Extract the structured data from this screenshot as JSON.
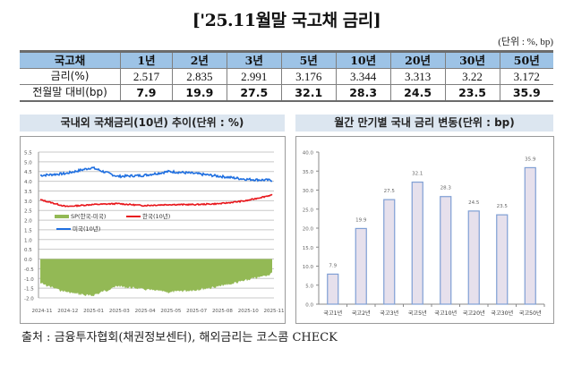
{
  "title": "['25.11월말 국고채 금리]",
  "unit": "(단위 : %, bp)",
  "table": {
    "headers": [
      "국고채",
      "1년",
      "2년",
      "3년",
      "5년",
      "10년",
      "20년",
      "30년",
      "50년"
    ],
    "rows": [
      {
        "label": "금리(%)",
        "values": [
          "2.517",
          "2.835",
          "2.991",
          "3.176",
          "3.344",
          "3.313",
          "3.22",
          "3.172"
        ]
      },
      {
        "label": "전월말 대비(bp)",
        "values": [
          "7.9",
          "19.9",
          "27.5",
          "32.1",
          "28.3",
          "24.5",
          "23.5",
          "35.9"
        ]
      }
    ]
  },
  "left_panel": {
    "title": "국내외 국채금리(10년) 추이(단위 : %)",
    "legend": {
      "spread": "SP(한국-미국)",
      "korea": "한국(10년)",
      "us": "미국(10년)"
    }
  },
  "right_panel": {
    "title": "월간 만기별 국내 금리 변동(단위 : bp)"
  },
  "footer": "출처 : 금융투자협회(채권정보센터), 해외금리는 코스콤 CHECK",
  "colors": {
    "header_bg": "#9dc3e6",
    "band_bg": "#dce6f0",
    "us_line": "#1f6fe0",
    "korea_line": "#e8161b",
    "spread_area": "#93b955",
    "bar_fill": "#e6e0ec",
    "bar_stroke": "#7f9fd4"
  },
  "chart_data": [
    {
      "type": "line",
      "title": "국내외 국채금리(10년) 추이(단위 : %)",
      "xlabel": "",
      "ylabel": "%",
      "ylim": [
        -2.0,
        5.5
      ],
      "yticks": [
        "5.5",
        "5.0",
        "4.5",
        "4.0",
        "3.5",
        "3.0",
        "2.5",
        "2.0",
        "1.5",
        "1.0",
        "0.5",
        "0.0",
        "-0.5",
        "-1.0",
        "-1.5",
        "-2.0"
      ],
      "x": [
        "2024-11",
        "2024-12",
        "2025-01",
        "2025-03",
        "2025-04",
        "2025-05",
        "2025-07",
        "2025-08",
        "2025-10",
        "2025-11"
      ],
      "grid": true,
      "legend_position": "inside-middle",
      "series": [
        {
          "name": "미국(10년)",
          "type": "line",
          "values": [
            4.3,
            4.4,
            4.7,
            4.25,
            4.3,
            4.5,
            4.4,
            4.25,
            4.1,
            4.05
          ]
        },
        {
          "name": "한국(10년)",
          "type": "line",
          "values": [
            3.05,
            2.7,
            2.8,
            2.85,
            2.75,
            2.8,
            2.8,
            2.85,
            3.0,
            3.3
          ]
        },
        {
          "name": "SP(한국-미국)",
          "type": "area",
          "values": [
            -1.25,
            -1.7,
            -1.9,
            -1.4,
            -1.55,
            -1.7,
            -1.6,
            -1.4,
            -1.1,
            -0.75
          ]
        }
      ]
    },
    {
      "type": "bar",
      "title": "월간 만기별 국내 금리 변동(단위 : bp)",
      "categories": [
        "국고1년",
        "국고2년",
        "국고3년",
        "국고5년",
        "국고10년",
        "국고20년",
        "국고30년",
        "국고50년"
      ],
      "values": [
        7.9,
        19.9,
        27.5,
        32.1,
        28.3,
        24.5,
        23.5,
        35.9
      ],
      "value_labels": [
        "7.9",
        "19.9",
        "27.5",
        "32.1",
        "28.3",
        "24.5",
        "23.5",
        "35.9"
      ],
      "yticks": [
        "40.0",
        "35.0",
        "30.0",
        "25.0",
        "20.0",
        "15.0",
        "10.0",
        "5.0",
        "0.0"
      ],
      "ylim": [
        0,
        40
      ],
      "xlabel": "",
      "ylabel": "bp",
      "grid": false
    }
  ]
}
